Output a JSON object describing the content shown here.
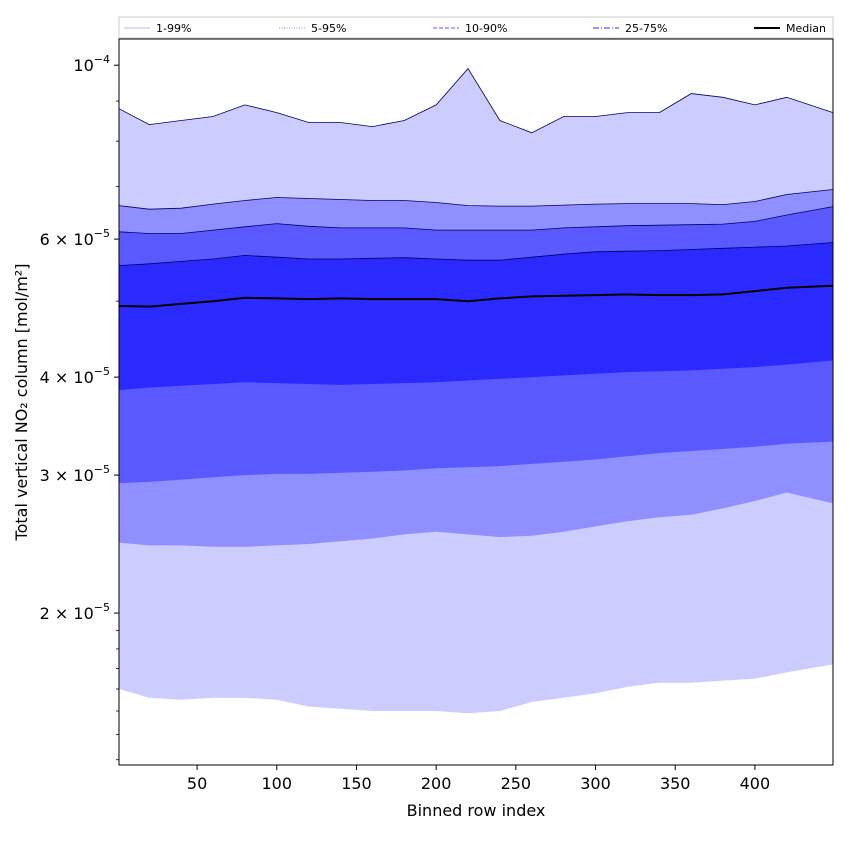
{
  "chart_data": {
    "type": "area",
    "xlabel": "Binned row index",
    "ylabel": "Total vertical NO₂ column [mol/m²]",
    "yscale": "log",
    "xlim": [
      1,
      449
    ],
    "ylim": [
      1.28e-05,
      0.000108
    ],
    "x_ticks": [
      50,
      100,
      150,
      200,
      250,
      300,
      350,
      400
    ],
    "y_ticks": [
      {
        "value": 0.0001,
        "mantissa": "10",
        "exponent": "−4"
      },
      {
        "value": 6e-05,
        "mantissa": "6 × 10",
        "exponent": "−5"
      },
      {
        "value": 4e-05,
        "mantissa": "4 × 10",
        "exponent": "−5"
      },
      {
        "value": 3e-05,
        "mantissa": "3 × 10",
        "exponent": "−5"
      },
      {
        "value": 2e-05,
        "mantissa": "2 × 10",
        "exponent": "−5"
      }
    ],
    "x": [
      1,
      20,
      40,
      60,
      80,
      100,
      120,
      140,
      160,
      180,
      200,
      220,
      240,
      260,
      280,
      300,
      320,
      340,
      360,
      380,
      400,
      420,
      449
    ],
    "series": [
      {
        "name": "1-99%",
        "color": "#ccccff",
        "lower": [
          1.6e-05,
          1.56e-05,
          1.55e-05,
          1.56e-05,
          1.56e-05,
          1.55e-05,
          1.52e-05,
          1.51e-05,
          1.5e-05,
          1.5e-05,
          1.5e-05,
          1.49e-05,
          1.5e-05,
          1.54e-05,
          1.56e-05,
          1.58e-05,
          1.61e-05,
          1.63e-05,
          1.63e-05,
          1.64e-05,
          1.65e-05,
          1.68e-05,
          1.72e-05
        ],
        "upper": [
          8.8e-05,
          8.4e-05,
          8.5e-05,
          8.6e-05,
          8.9e-05,
          8.7e-05,
          8.45e-05,
          8.45e-05,
          8.35e-05,
          8.5e-05,
          8.9e-05,
          9.9e-05,
          8.5e-05,
          8.2e-05,
          8.6e-05,
          8.6e-05,
          8.7e-05,
          8.7e-05,
          9.2e-05,
          9.1e-05,
          8.9e-05,
          9.1e-05,
          8.7e-05
        ]
      },
      {
        "name": "5-95%",
        "color": "#8f8fff",
        "lower": [
          2.46e-05,
          2.44e-05,
          2.44e-05,
          2.43e-05,
          2.43e-05,
          2.44e-05,
          2.45e-05,
          2.47e-05,
          2.49e-05,
          2.52e-05,
          2.54e-05,
          2.52e-05,
          2.5e-05,
          2.51e-05,
          2.54e-05,
          2.58e-05,
          2.62e-05,
          2.65e-05,
          2.67e-05,
          2.72e-05,
          2.78e-05,
          2.85e-05,
          2.76e-05
        ],
        "upper": [
          6.62e-05,
          6.55e-05,
          6.57e-05,
          6.65e-05,
          6.72e-05,
          6.78e-05,
          6.76e-05,
          6.74e-05,
          6.72e-05,
          6.72e-05,
          6.68e-05,
          6.62e-05,
          6.61e-05,
          6.61e-05,
          6.63e-05,
          6.65e-05,
          6.66e-05,
          6.66e-05,
          6.66e-05,
          6.64e-05,
          6.7e-05,
          6.84e-05,
          6.94e-05
        ]
      },
      {
        "name": "10-90%",
        "color": "#5959ff",
        "lower": [
          2.93e-05,
          2.94e-05,
          2.96e-05,
          2.98e-05,
          3e-05,
          3.01e-05,
          3.01e-05,
          3.02e-05,
          3.03e-05,
          3.04e-05,
          3.06e-05,
          3.07e-05,
          3.08e-05,
          3.1e-05,
          3.12e-05,
          3.14e-05,
          3.17e-05,
          3.2e-05,
          3.22e-05,
          3.24e-05,
          3.26e-05,
          3.29e-05,
          3.31e-05
        ],
        "upper": [
          6.13e-05,
          6.1e-05,
          6.1e-05,
          6.16e-05,
          6.22e-05,
          6.28e-05,
          6.23e-05,
          6.2e-05,
          6.2e-05,
          6.2e-05,
          6.16e-05,
          6.16e-05,
          6.16e-05,
          6.16e-05,
          6.2e-05,
          6.22e-05,
          6.24e-05,
          6.25e-05,
          6.26e-05,
          6.27e-05,
          6.32e-05,
          6.44e-05,
          6.6e-05
        ]
      },
      {
        "name": "25-75%",
        "color": "#2a2aff",
        "lower": [
          3.85e-05,
          3.88e-05,
          3.9e-05,
          3.92e-05,
          3.94e-05,
          3.93e-05,
          3.92e-05,
          3.91e-05,
          3.92e-05,
          3.93e-05,
          3.94e-05,
          3.96e-05,
          3.98e-05,
          4e-05,
          4.02e-05,
          4.04e-05,
          4.06e-05,
          4.07e-05,
          4.08e-05,
          4.1e-05,
          4.12e-05,
          4.15e-05,
          4.2e-05
        ],
        "upper": [
          5.55e-05,
          5.58e-05,
          5.62e-05,
          5.66e-05,
          5.72e-05,
          5.69e-05,
          5.66e-05,
          5.66e-05,
          5.67e-05,
          5.68e-05,
          5.66e-05,
          5.64e-05,
          5.64e-05,
          5.69e-05,
          5.74e-05,
          5.78e-05,
          5.79e-05,
          5.8e-05,
          5.82e-05,
          5.84e-05,
          5.86e-05,
          5.88e-05,
          5.94e-05
        ]
      },
      {
        "name": "Median",
        "color": "#000000",
        "values": [
          4.93e-05,
          4.92e-05,
          4.96e-05,
          5e-05,
          5.05e-05,
          5.04e-05,
          5.03e-05,
          5.04e-05,
          5.03e-05,
          5.03e-05,
          5.03e-05,
          5e-05,
          5.04e-05,
          5.07e-05,
          5.08e-05,
          5.09e-05,
          5.1e-05,
          5.09e-05,
          5.09e-05,
          5.1e-05,
          5.15e-05,
          5.2e-05,
          5.23e-05
        ]
      }
    ],
    "legend": {
      "placement": "top",
      "entries": [
        {
          "label": "1-99%",
          "color": "#ccccff",
          "style": "solid"
        },
        {
          "label": "5-95%",
          "color": "#8f8fff",
          "style": "dotted"
        },
        {
          "label": "10-90%",
          "color": "#5959ff",
          "style": "dashed"
        },
        {
          "label": "25-75%",
          "color": "#2a2aff",
          "style": "dashdot"
        },
        {
          "label": "Median",
          "color": "#000000",
          "style": "solid-bold"
        }
      ]
    },
    "grid": false
  }
}
